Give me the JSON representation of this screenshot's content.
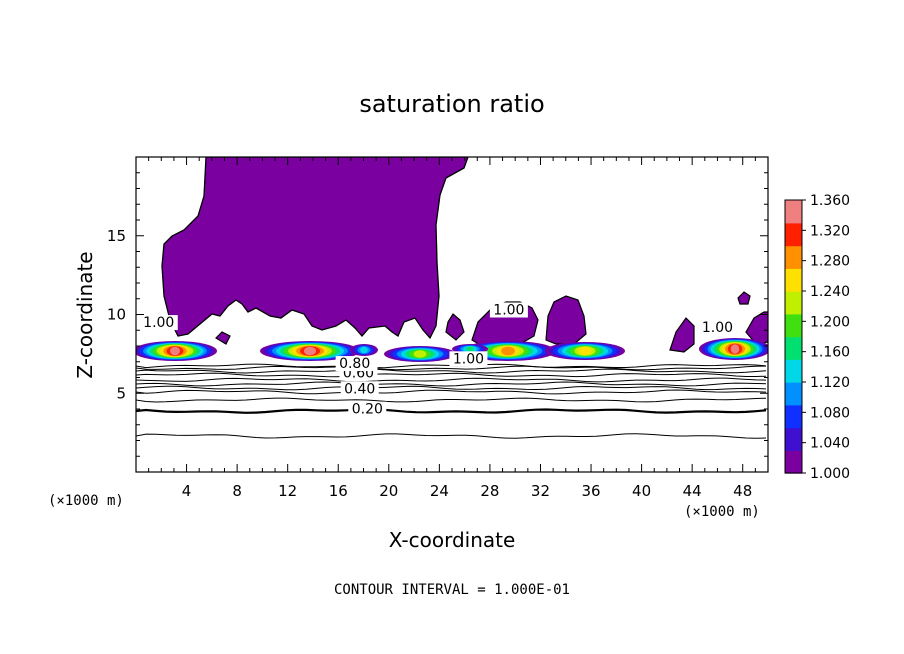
{
  "chart_data": {
    "type": "contour",
    "title": "saturation ratio",
    "xlabel": "X-coordinate",
    "ylabel": "Z-coordinate",
    "x_unit": "(×1000 m)",
    "y_unit": "(×1000 m)",
    "xlim": [
      0,
      50
    ],
    "ylim": [
      0,
      20
    ],
    "x_ticks": [
      4,
      8,
      12,
      16,
      20,
      24,
      28,
      32,
      36,
      40,
      44,
      48
    ],
    "y_ticks": [
      5,
      10,
      15
    ],
    "footer": "CONTOUR INTERVAL = 1.000E-01",
    "colorbar": {
      "min": 1.0,
      "max": 1.36,
      "labels": [
        "1.360",
        "1.320",
        "1.280",
        "1.240",
        "1.200",
        "1.160",
        "1.120",
        "1.080",
        "1.040",
        "1.000"
      ],
      "colors": [
        "#7a00a0",
        "#3f10d0",
        "#1030ff",
        "#0090ff",
        "#00d8e8",
        "#00e070",
        "#40e010",
        "#c0f000",
        "#ffe000",
        "#ff9000",
        "#ff2000",
        "#f08080"
      ]
    },
    "line_contours": [
      {
        "label": "0.20",
        "z": 4.0,
        "bold": true
      },
      {
        "label": "0.40",
        "z": 5.3,
        "bold": false
      },
      {
        "label": "0.60",
        "z": 6.3,
        "bold": false
      },
      {
        "label": "0.80",
        "z": 6.9,
        "bold": false
      },
      {
        "label": "1.00",
        "z": 10.0,
        "bold": false
      }
    ],
    "contour_labels": [
      {
        "text": "0.20",
        "x": 18.3,
        "z": 3.7
      },
      {
        "text": "0.40",
        "x": 17.7,
        "z": 5.0
      },
      {
        "text": "0.60",
        "x": 17.6,
        "z": 6.0
      },
      {
        "text": "0.80",
        "x": 17.3,
        "z": 6.6
      },
      {
        "text": "1.00",
        "x": 1.8,
        "z": 9.2
      },
      {
        "text": "1.00",
        "x": 26.3,
        "z": 6.9
      },
      {
        "text": "1.00",
        "x": 29.5,
        "z": 10.0
      },
      {
        "text": "1.00",
        "x": 46.0,
        "z": 8.9
      }
    ]
  }
}
